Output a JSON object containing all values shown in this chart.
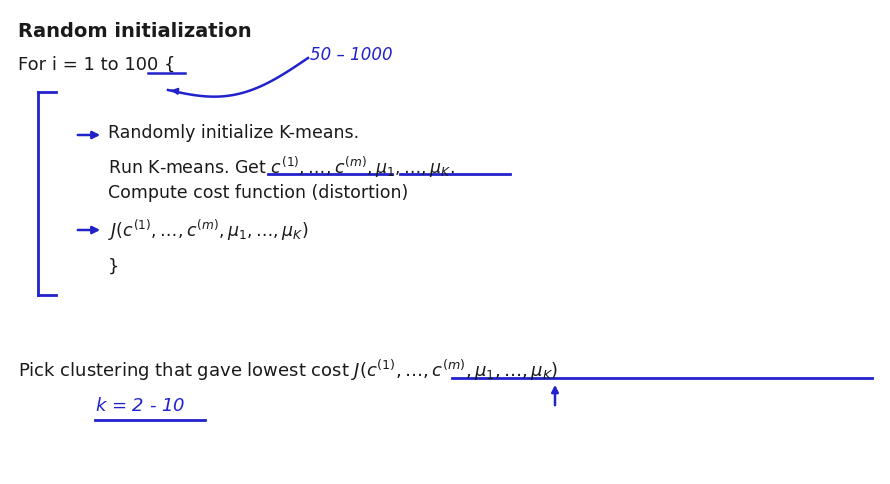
{
  "title": "Random initialization",
  "bg_color": "#ffffff",
  "black_color": "#1a1a1a",
  "blue_color": "#2222cc",
  "figsize": [
    8.9,
    4.84
  ],
  "dpi": 100,
  "for_text": "For i = 1 to 100 {",
  "annotation_50_1000": "50 – 1000",
  "line1": "Randomly initialize K-means.",
  "line2_pre": "Run K-means. Get ",
  "line2_math": "$c^{(1)},\\ldots,c^{(m)},\\mu_1,\\ldots,\\mu_K$.",
  "line3": "Compute cost function (distortion)",
  "line4_math": "$J(c^{(1)},\\ldots,c^{(m)},\\mu_1,\\ldots,\\mu_K)$",
  "close_brace": "}",
  "bottom_pre": "Pick clustering that gave lowest cost ",
  "bottom_math": "$J(c^{(1)},\\ldots,c^{(m)},\\mu_1,\\ldots,\\mu_K)$",
  "k_annotation": "$k$ = 2 - 10"
}
